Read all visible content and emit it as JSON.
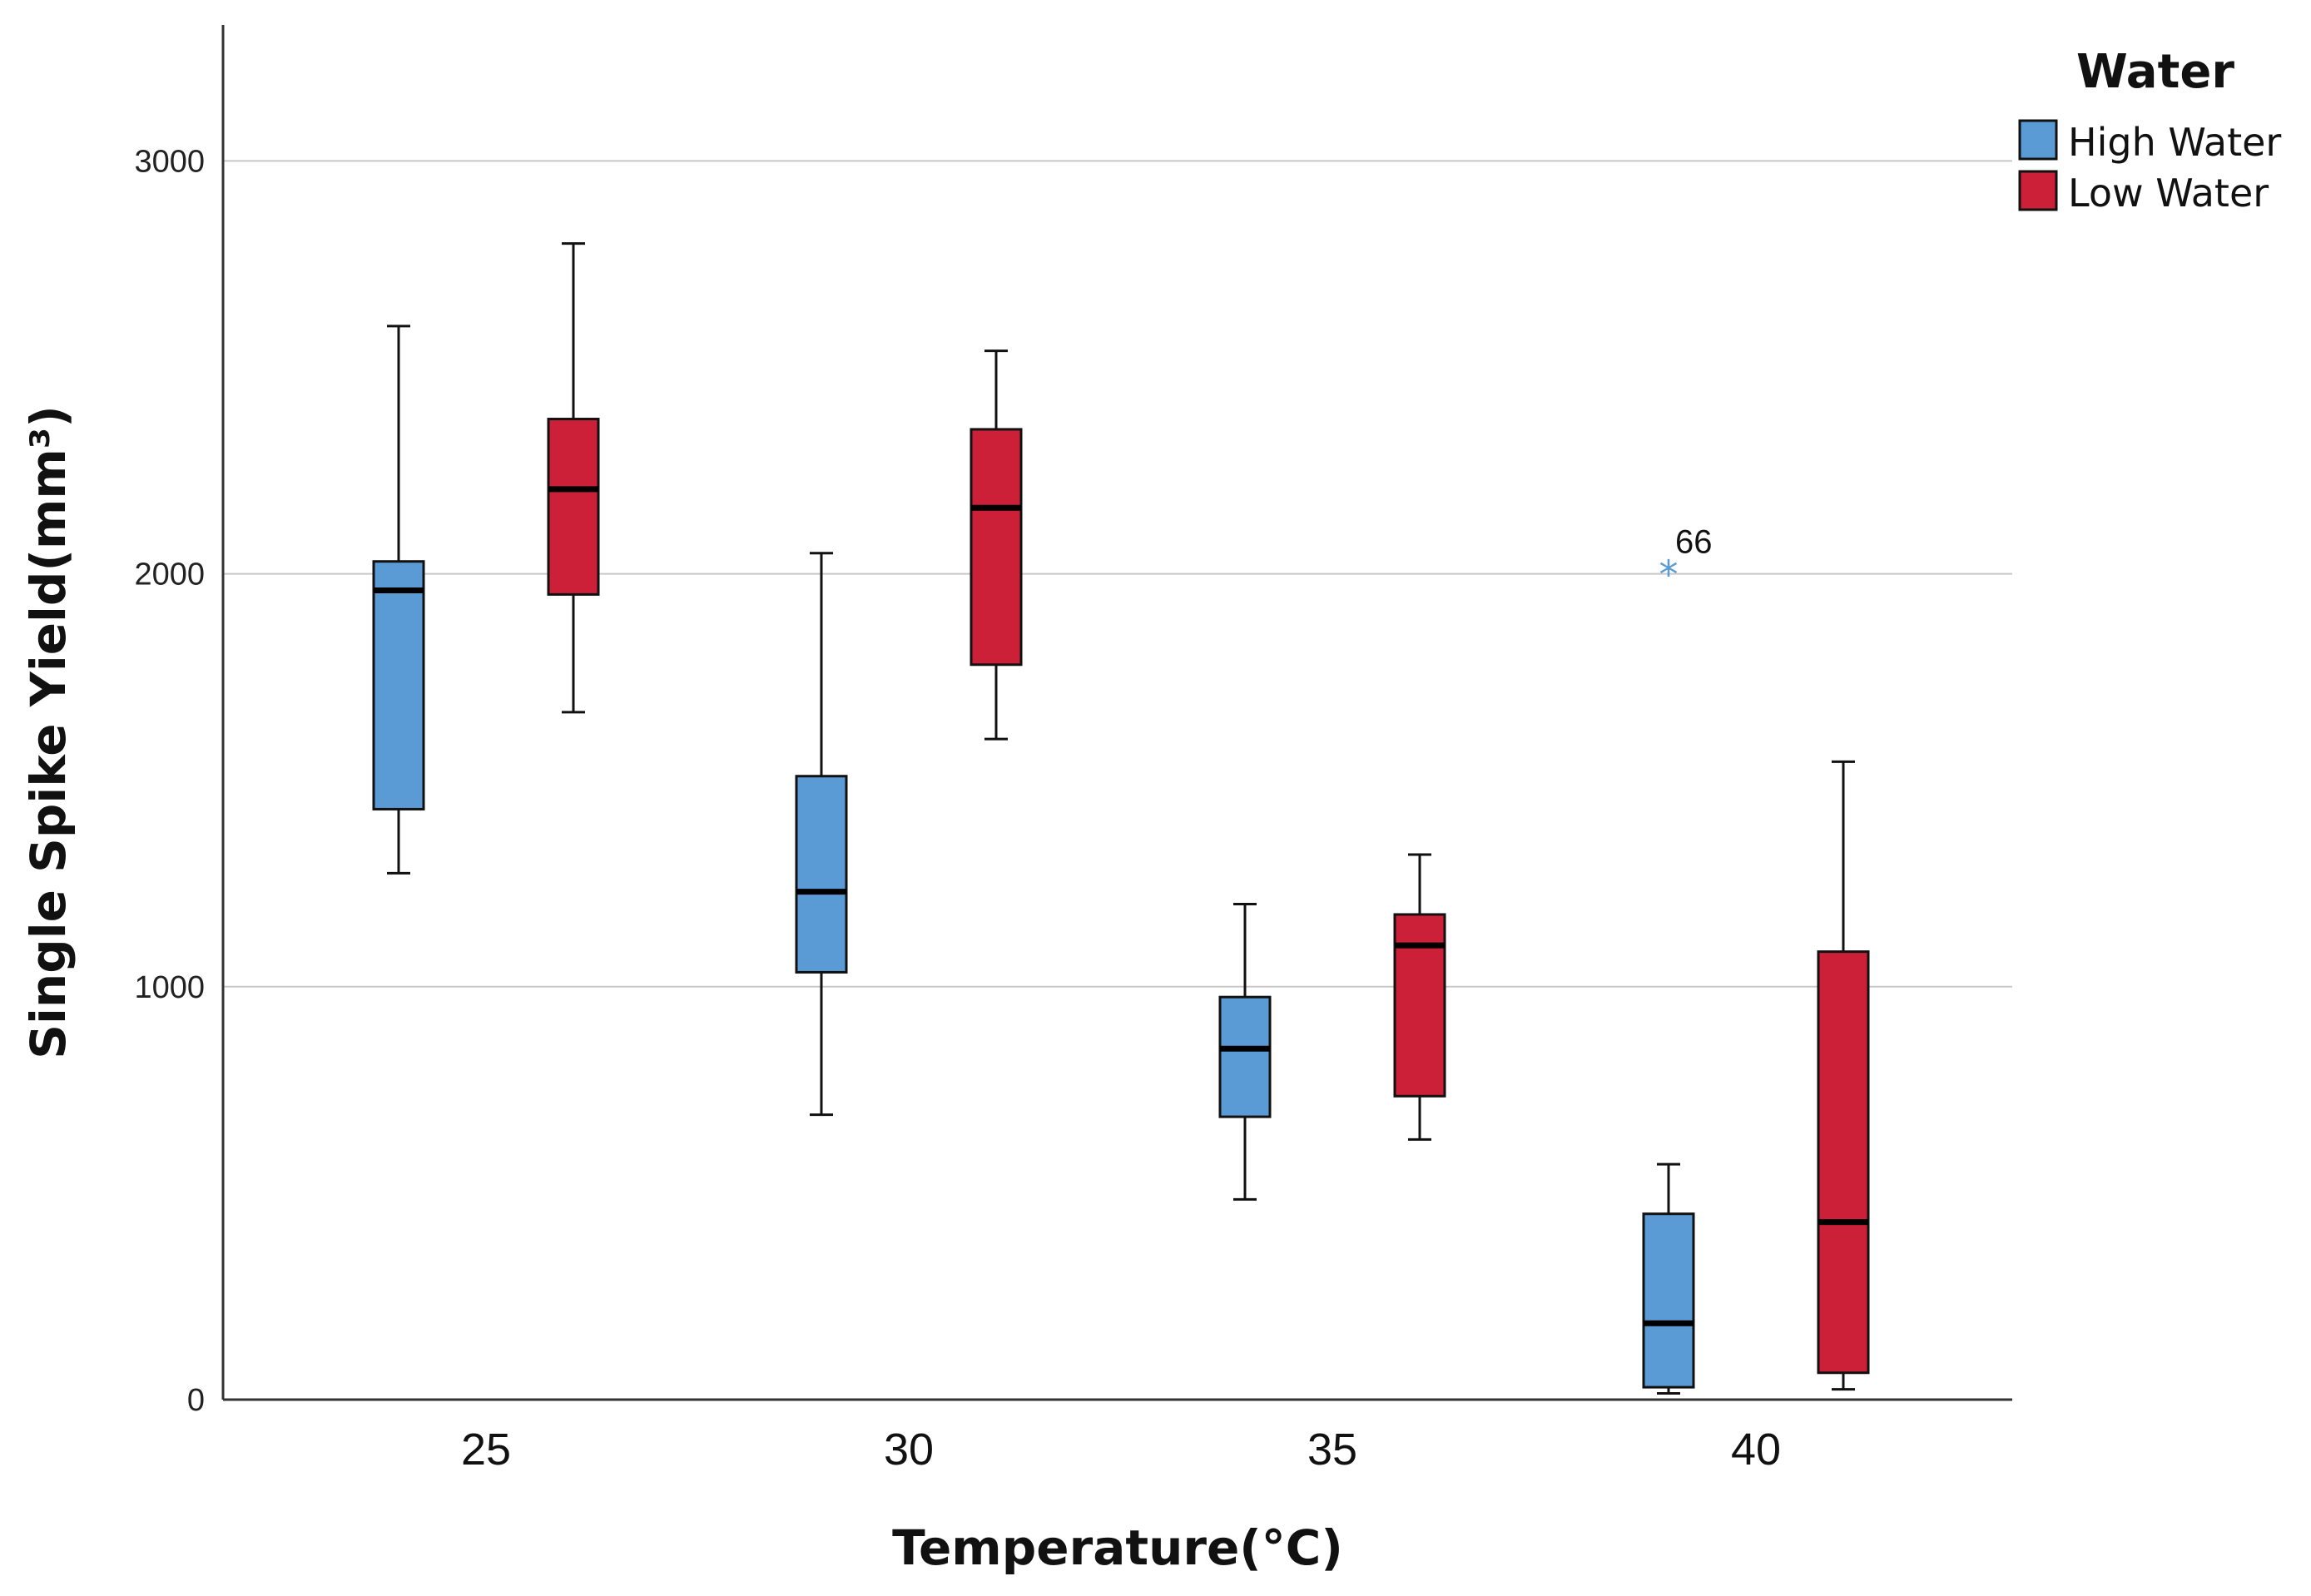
{
  "chart_data": {
    "type": "boxplot",
    "xlabel": "Temperature(°C)",
    "ylabel": "Single Spike Yield(mm³)",
    "ylim": [
      0,
      3300
    ],
    "yticks": [
      0,
      1000,
      2000,
      3000
    ],
    "ytick_labels": [
      "0",
      "1000",
      "2000",
      "3000"
    ],
    "grid": "horizontal",
    "legend": {
      "title": "Water",
      "placement": "top-right",
      "entries": [
        {
          "name": "High Water",
          "color": "#5b9bd5"
        },
        {
          "name": "Low Water",
          "color": "#cc1f38"
        }
      ]
    },
    "categories": [
      "25",
      "30",
      "35",
      "40"
    ],
    "series": [
      {
        "name": "High Water",
        "color": "#5b9bd5",
        "boxes": [
          {
            "min": 1275,
            "q1": 1430,
            "median": 1960,
            "q3": 2030,
            "max": 2600
          },
          {
            "min": 690,
            "q1": 1035,
            "median": 1230,
            "q3": 1510,
            "max": 2050
          },
          {
            "min": 485,
            "q1": 685,
            "median": 850,
            "q3": 975,
            "max": 1200
          },
          {
            "min": 15,
            "q1": 30,
            "median": 185,
            "q3": 450,
            "max": 570
          }
        ],
        "outliers": [
          {
            "category": "40",
            "value": 2010,
            "label": "66"
          }
        ]
      },
      {
        "name": "Low Water",
        "color": "#cc1f38",
        "boxes": [
          {
            "min": 1665,
            "q1": 1950,
            "median": 2205,
            "q3": 2375,
            "max": 2800
          },
          {
            "min": 1600,
            "q1": 1780,
            "median": 2160,
            "q3": 2350,
            "max": 2540
          },
          {
            "min": 630,
            "q1": 735,
            "median": 1100,
            "q3": 1175,
            "max": 1320
          },
          {
            "min": 25,
            "q1": 65,
            "median": 430,
            "q3": 1085,
            "max": 1545
          }
        ],
        "outliers": []
      }
    ]
  }
}
